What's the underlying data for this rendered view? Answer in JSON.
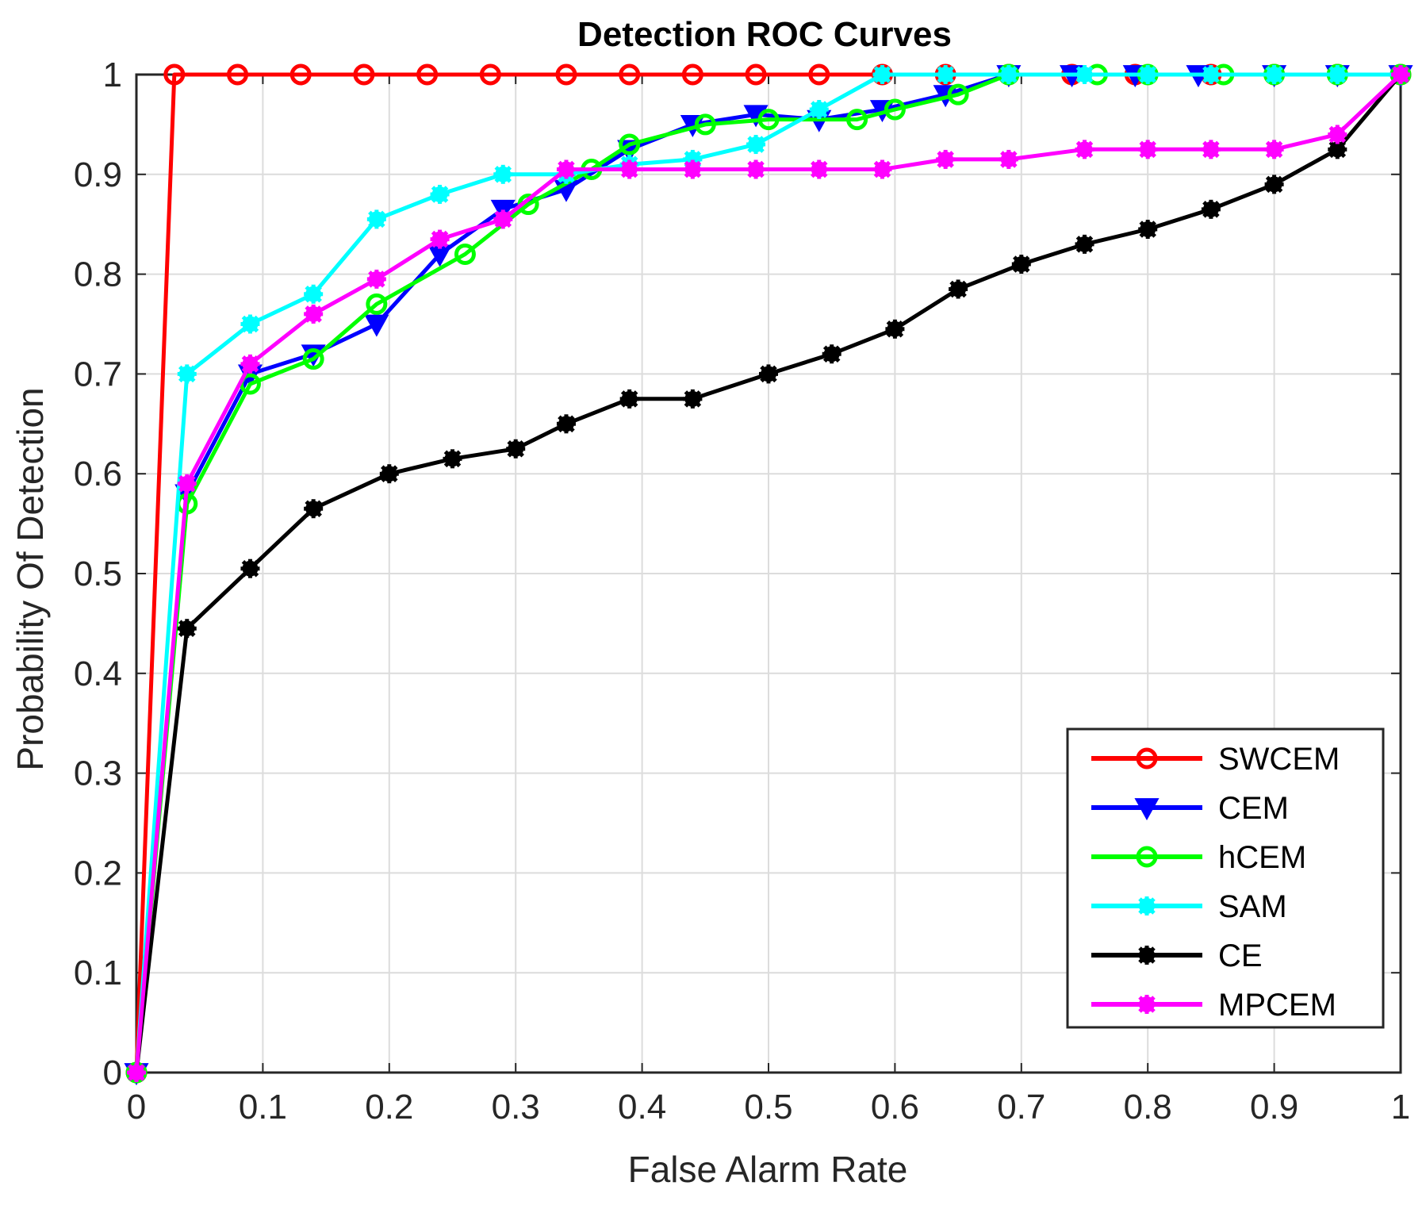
{
  "chart_data": {
    "type": "line",
    "title": "Detection ROC Curves",
    "xlabel": "False Alarm Rate",
    "ylabel": "Probability Of Detection",
    "xlim": [
      0,
      1
    ],
    "ylim": [
      0,
      1
    ],
    "x_ticks": [
      "0",
      "0.1",
      "0.2",
      "0.3",
      "0.4",
      "0.5",
      "0.6",
      "0.7",
      "0.8",
      "0.9",
      "1"
    ],
    "y_ticks": [
      "0",
      "0.1",
      "0.2",
      "0.3",
      "0.4",
      "0.5",
      "0.6",
      "0.7",
      "0.8",
      "0.9",
      "1"
    ],
    "grid": true,
    "legend_position": "bottom-right",
    "series": [
      {
        "name": "SWCEM",
        "color": "#ff0000",
        "marker": "circle",
        "points": [
          [
            0,
            0
          ],
          [
            0.03,
            1
          ],
          [
            0.08,
            1
          ],
          [
            0.13,
            1
          ],
          [
            0.18,
            1
          ],
          [
            0.23,
            1
          ],
          [
            0.28,
            1
          ],
          [
            0.34,
            1
          ],
          [
            0.39,
            1
          ],
          [
            0.44,
            1
          ],
          [
            0.49,
            1
          ],
          [
            0.54,
            1
          ],
          [
            0.59,
            1
          ],
          [
            0.64,
            1
          ],
          [
            0.69,
            1
          ],
          [
            0.74,
            1
          ],
          [
            0.79,
            1
          ],
          [
            0.85,
            1
          ],
          [
            0.9,
            1
          ],
          [
            0.95,
            1
          ],
          [
            1,
            1
          ]
        ]
      },
      {
        "name": "CEM",
        "color": "#0000ff",
        "marker": "triangle-down",
        "points": [
          [
            0,
            0
          ],
          [
            0.04,
            0.58
          ],
          [
            0.09,
            0.7
          ],
          [
            0.14,
            0.72
          ],
          [
            0.19,
            0.75
          ],
          [
            0.24,
            0.82
          ],
          [
            0.29,
            0.865
          ],
          [
            0.34,
            0.885
          ],
          [
            0.39,
            0.925
          ],
          [
            0.44,
            0.95
          ],
          [
            0.49,
            0.96
          ],
          [
            0.54,
            0.955
          ],
          [
            0.59,
            0.965
          ],
          [
            0.64,
            0.98
          ],
          [
            0.69,
            1
          ],
          [
            0.74,
            1
          ],
          [
            0.79,
            1
          ],
          [
            0.84,
            1
          ],
          [
            0.9,
            1
          ],
          [
            0.95,
            1
          ],
          [
            1,
            1
          ]
        ]
      },
      {
        "name": "hCEM",
        "color": "#00ff00",
        "marker": "circle",
        "points": [
          [
            0,
            0
          ],
          [
            0.04,
            0.57
          ],
          [
            0.09,
            0.69
          ],
          [
            0.14,
            0.715
          ],
          [
            0.19,
            0.77
          ],
          [
            0.26,
            0.82
          ],
          [
            0.31,
            0.87
          ],
          [
            0.36,
            0.905
          ],
          [
            0.39,
            0.93
          ],
          [
            0.45,
            0.95
          ],
          [
            0.5,
            0.955
          ],
          [
            0.57,
            0.955
          ],
          [
            0.6,
            0.965
          ],
          [
            0.65,
            0.98
          ],
          [
            0.69,
            1
          ],
          [
            0.76,
            1
          ],
          [
            0.8,
            1
          ],
          [
            0.86,
            1
          ],
          [
            0.9,
            1
          ],
          [
            0.95,
            1
          ],
          [
            1,
            1
          ]
        ]
      },
      {
        "name": "SAM",
        "color": "#00ffff",
        "marker": "asterisk",
        "points": [
          [
            0,
            0
          ],
          [
            0.04,
            0.7
          ],
          [
            0.09,
            0.75
          ],
          [
            0.14,
            0.78
          ],
          [
            0.19,
            0.855
          ],
          [
            0.24,
            0.88
          ],
          [
            0.29,
            0.9
          ],
          [
            0.34,
            0.9
          ],
          [
            0.39,
            0.91
          ],
          [
            0.44,
            0.915
          ],
          [
            0.49,
            0.93
          ],
          [
            0.54,
            0.965
          ],
          [
            0.59,
            1
          ],
          [
            0.64,
            1
          ],
          [
            0.69,
            1
          ],
          [
            0.75,
            1
          ],
          [
            0.8,
            1
          ],
          [
            0.85,
            1
          ],
          [
            0.9,
            1
          ],
          [
            0.95,
            1
          ],
          [
            1,
            1
          ]
        ]
      },
      {
        "name": "CE",
        "color": "#000000",
        "marker": "asterisk",
        "points": [
          [
            0,
            0
          ],
          [
            0.04,
            0.445
          ],
          [
            0.09,
            0.505
          ],
          [
            0.14,
            0.565
          ],
          [
            0.2,
            0.6
          ],
          [
            0.25,
            0.615
          ],
          [
            0.3,
            0.625
          ],
          [
            0.34,
            0.65
          ],
          [
            0.39,
            0.675
          ],
          [
            0.44,
            0.675
          ],
          [
            0.5,
            0.7
          ],
          [
            0.55,
            0.72
          ],
          [
            0.6,
            0.745
          ],
          [
            0.65,
            0.785
          ],
          [
            0.7,
            0.81
          ],
          [
            0.75,
            0.83
          ],
          [
            0.8,
            0.845
          ],
          [
            0.85,
            0.865
          ],
          [
            0.9,
            0.89
          ],
          [
            0.95,
            0.925
          ],
          [
            1,
            1
          ]
        ]
      },
      {
        "name": "MPCEM",
        "color": "#ff00ff",
        "marker": "asterisk",
        "points": [
          [
            0,
            0
          ],
          [
            0.04,
            0.59
          ],
          [
            0.09,
            0.71
          ],
          [
            0.14,
            0.76
          ],
          [
            0.19,
            0.795
          ],
          [
            0.24,
            0.835
          ],
          [
            0.29,
            0.855
          ],
          [
            0.34,
            0.905
          ],
          [
            0.39,
            0.905
          ],
          [
            0.44,
            0.905
          ],
          [
            0.49,
            0.905
          ],
          [
            0.54,
            0.905
          ],
          [
            0.59,
            0.905
          ],
          [
            0.64,
            0.915
          ],
          [
            0.69,
            0.915
          ],
          [
            0.75,
            0.925
          ],
          [
            0.8,
            0.925
          ],
          [
            0.85,
            0.925
          ],
          [
            0.9,
            0.925
          ],
          [
            0.95,
            0.94
          ],
          [
            1,
            1
          ]
        ]
      }
    ]
  }
}
